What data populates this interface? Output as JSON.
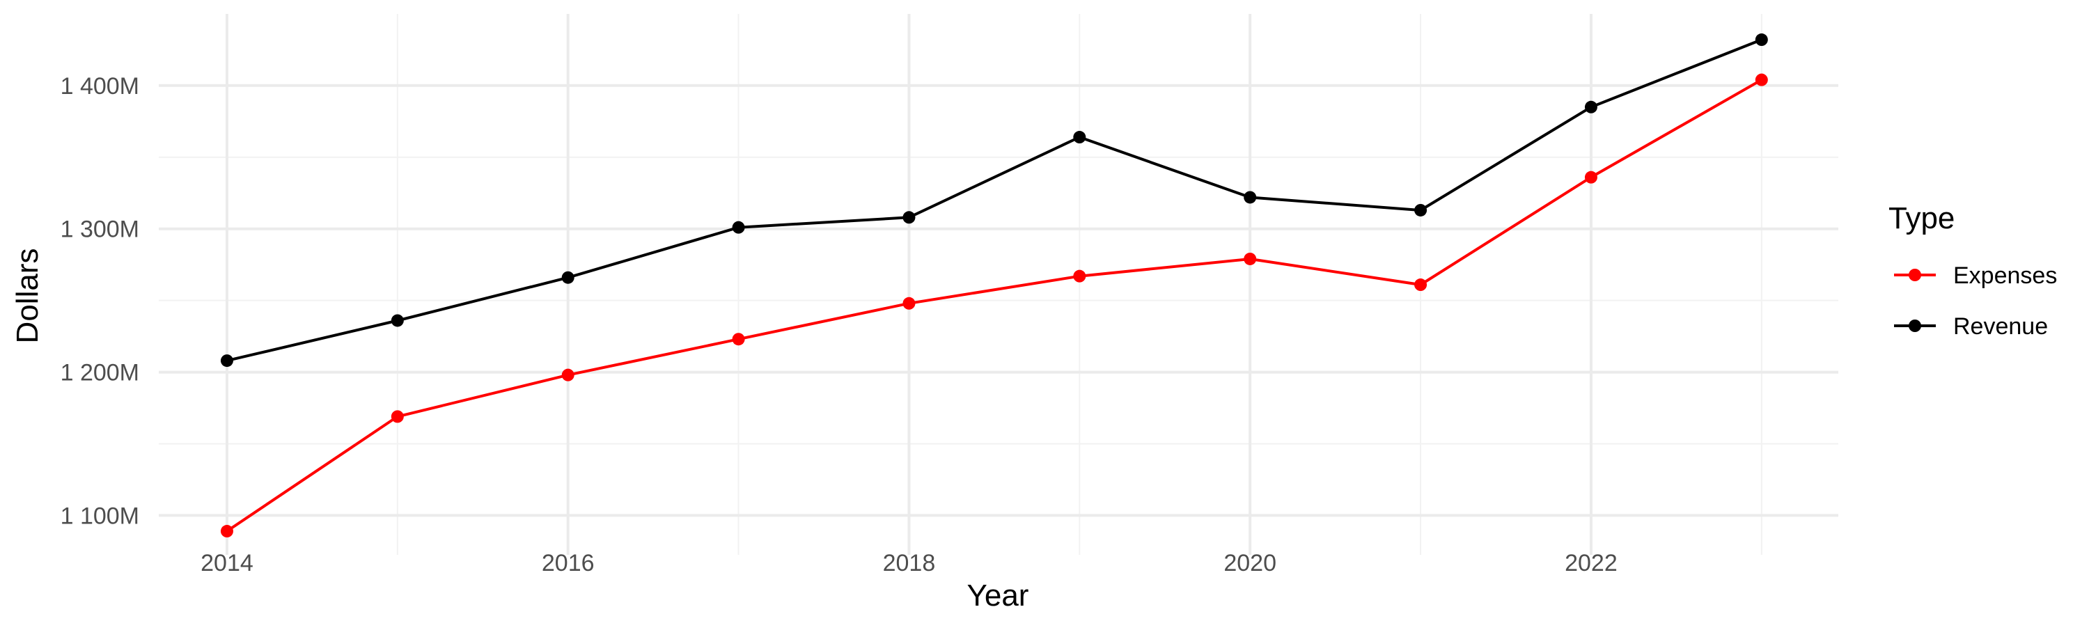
{
  "chart_data": {
    "type": "line",
    "xlabel": "Year",
    "ylabel": "Dollars",
    "x": [
      2014,
      2015,
      2016,
      2017,
      2018,
      2019,
      2020,
      2021,
      2022,
      2023
    ],
    "series": [
      {
        "name": "Expenses",
        "color": "#ff0000",
        "values": [
          1089,
          1169,
          1198,
          1223,
          1248,
          1267,
          1279,
          1261,
          1336,
          1404
        ]
      },
      {
        "name": "Revenue",
        "color": "#000000",
        "values": [
          1208,
          1236,
          1266,
          1301,
          1308,
          1364,
          1322,
          1313,
          1385,
          1432
        ]
      }
    ],
    "xlim": [
      2013.6,
      2023.45
    ],
    "ylim": [
      1072.5,
      1450
    ],
    "x_ticks": [
      2014,
      2016,
      2018,
      2020,
      2022
    ],
    "x_tick_labels": [
      "2014",
      "2016",
      "2018",
      "2020",
      "2022"
    ],
    "y_ticks": [
      1100,
      1200,
      1300,
      1400
    ],
    "y_tick_labels": [
      "1 100M",
      "1 200M",
      "1 300M",
      "1 400M"
    ],
    "legend": {
      "title": "Type",
      "position": "right"
    },
    "grid": true
  }
}
